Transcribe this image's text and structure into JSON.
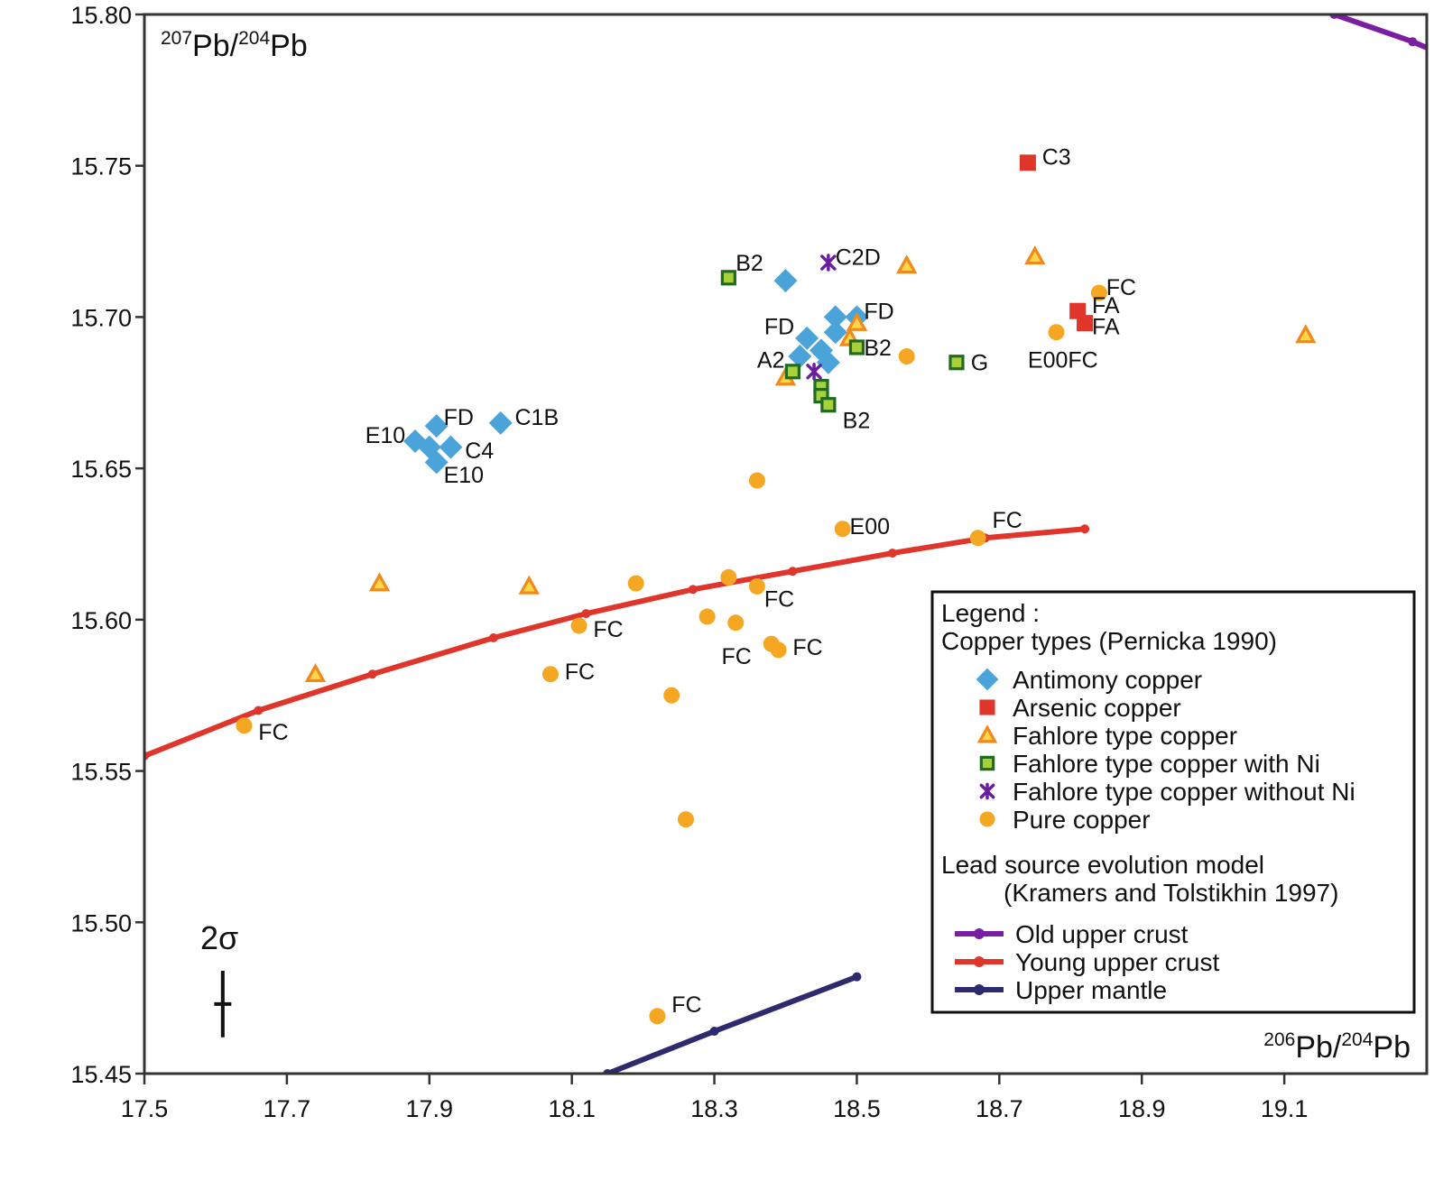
{
  "chart_data": {
    "type": "scatter",
    "x_label": "206Pb/204Pb",
    "x_label_parts": {
      "sup1": "206",
      "base1": "Pb/",
      "sup2": "204",
      "base2": "Pb"
    },
    "y_label": "207Pb/204Pb",
    "y_label_parts": {
      "sup1": "207",
      "base1": "Pb/",
      "sup2": "204",
      "base2": "Pb"
    },
    "xlim": [
      17.5,
      19.3
    ],
    "ylim": [
      15.45,
      15.8
    ],
    "x_ticks": [
      "17.5",
      "17.7",
      "17.9",
      "18.1",
      "18.3",
      "18.5",
      "18.7",
      "18.9",
      "19.1"
    ],
    "y_ticks": [
      "15.80",
      "15.75",
      "15.70",
      "15.65",
      "15.60",
      "15.55",
      "15.50",
      "15.45"
    ],
    "error_bar": {
      "label": "2σ",
      "x": 17.61,
      "y_center": 15.473,
      "y_half": 0.011,
      "x_half": 0.012
    },
    "series": [
      {
        "name": "Antimony copper",
        "marker": "diamond",
        "color": "#4aa3d9",
        "points": [
          [
            17.91,
            15.664
          ],
          [
            17.88,
            15.659
          ],
          [
            17.9,
            15.657
          ],
          [
            17.93,
            15.657
          ],
          [
            17.91,
            15.652
          ],
          [
            18.0,
            15.665
          ],
          [
            18.4,
            15.712
          ],
          [
            18.47,
            15.7
          ],
          [
            18.5,
            15.7
          ],
          [
            18.47,
            15.695
          ],
          [
            18.43,
            15.693
          ],
          [
            18.45,
            15.689
          ],
          [
            18.42,
            15.687
          ],
          [
            18.46,
            15.685
          ]
        ]
      },
      {
        "name": "Arsenic copper",
        "marker": "square",
        "color": "#e0352b",
        "points": [
          [
            18.74,
            15.751
          ],
          [
            18.81,
            15.702
          ],
          [
            18.82,
            15.698
          ]
        ]
      },
      {
        "name": "Fahlore type copper",
        "marker": "triangle",
        "color": "#f08a1c",
        "points": [
          [
            18.57,
            15.717
          ],
          [
            18.75,
            15.72
          ],
          [
            19.13,
            15.694
          ],
          [
            18.5,
            15.698
          ],
          [
            18.49,
            15.693
          ],
          [
            18.4,
            15.68
          ],
          [
            17.83,
            15.612
          ],
          [
            18.04,
            15.611
          ],
          [
            17.74,
            15.582
          ]
        ]
      },
      {
        "name": "Fahlore type copper with Ni",
        "marker": "square-outline",
        "color": "#a9cf3b",
        "points": [
          [
            18.32,
            15.713
          ],
          [
            18.5,
            15.69
          ],
          [
            18.64,
            15.685
          ],
          [
            18.41,
            15.682
          ],
          [
            18.45,
            15.677
          ],
          [
            18.45,
            15.674
          ],
          [
            18.46,
            15.671
          ]
        ]
      },
      {
        "name": "Fahlore type copper without Ni",
        "marker": "cross",
        "color": "#6a1e9e",
        "points": [
          [
            18.46,
            15.718
          ],
          [
            18.44,
            15.682
          ]
        ]
      },
      {
        "name": "Pure copper",
        "marker": "circle",
        "color": "#f5a623",
        "points": [
          [
            18.84,
            15.708
          ],
          [
            18.78,
            15.695
          ],
          [
            18.57,
            15.687
          ],
          [
            18.36,
            15.646
          ],
          [
            18.48,
            15.63
          ],
          [
            18.67,
            15.627
          ],
          [
            18.19,
            15.612
          ],
          [
            18.32,
            15.614
          ],
          [
            18.36,
            15.611
          ],
          [
            18.11,
            15.598
          ],
          [
            18.29,
            15.601
          ],
          [
            18.33,
            15.599
          ],
          [
            18.38,
            15.592
          ],
          [
            18.39,
            15.59
          ],
          [
            18.07,
            15.582
          ],
          [
            18.24,
            15.575
          ],
          [
            17.64,
            15.565
          ],
          [
            18.26,
            15.534
          ],
          [
            18.22,
            15.469
          ]
        ]
      }
    ],
    "model_curves": [
      {
        "name": "Old upper crust",
        "color": "#7b1fa2",
        "points": [
          [
            19.17,
            15.8
          ],
          [
            19.28,
            15.791
          ],
          [
            19.31,
            15.788
          ]
        ]
      },
      {
        "name": "Young upper crust",
        "color": "#e0352b",
        "points": [
          [
            17.5,
            15.555
          ],
          [
            17.66,
            15.57
          ],
          [
            17.82,
            15.582
          ],
          [
            17.99,
            15.594
          ],
          [
            18.12,
            15.602
          ],
          [
            18.27,
            15.61
          ],
          [
            18.41,
            15.616
          ],
          [
            18.55,
            15.622
          ],
          [
            18.68,
            15.627
          ],
          [
            18.82,
            15.63
          ]
        ]
      },
      {
        "name": "Upper mantle",
        "color": "#2e2a6e",
        "points": [
          [
            18.15,
            15.45
          ],
          [
            18.3,
            15.464
          ],
          [
            18.5,
            15.482
          ]
        ]
      }
    ],
    "annotations": [
      {
        "text": "C3",
        "x": 18.76,
        "y": 15.753
      },
      {
        "text": "B2",
        "x": 18.33,
        "y": 15.718
      },
      {
        "text": "C2D",
        "x": 18.47,
        "y": 15.72
      },
      {
        "text": "FC",
        "x": 18.85,
        "y": 15.71
      },
      {
        "text": "FD",
        "x": 18.51,
        "y": 15.702
      },
      {
        "text": "FA",
        "x": 18.83,
        "y": 15.704
      },
      {
        "text": "FA",
        "x": 18.83,
        "y": 15.697
      },
      {
        "text": "FD",
        "x": 18.37,
        "y": 15.697
      },
      {
        "text": "B2",
        "x": 18.51,
        "y": 15.69
      },
      {
        "text": "E00FC",
        "x": 18.74,
        "y": 15.686
      },
      {
        "text": "A2",
        "x": 18.36,
        "y": 15.686
      },
      {
        "text": "G",
        "x": 18.66,
        "y": 15.685
      },
      {
        "text": "B2",
        "x": 18.48,
        "y": 15.666
      },
      {
        "text": "FD",
        "x": 17.92,
        "y": 15.667
      },
      {
        "text": "C1B",
        "x": 18.02,
        "y": 15.667
      },
      {
        "text": "E10",
        "x": 17.81,
        "y": 15.661
      },
      {
        "text": "C4",
        "x": 17.95,
        "y": 15.656
      },
      {
        "text": "E10",
        "x": 17.92,
        "y": 15.648
      },
      {
        "text": "E00",
        "x": 18.49,
        "y": 15.631
      },
      {
        "text": "FC",
        "x": 18.69,
        "y": 15.633
      },
      {
        "text": "FC",
        "x": 18.37,
        "y": 15.607
      },
      {
        "text": "FC",
        "x": 18.13,
        "y": 15.597
      },
      {
        "text": "FC",
        "x": 18.41,
        "y": 15.591
      },
      {
        "text": "FC",
        "x": 18.31,
        "y": 15.588
      },
      {
        "text": "FC",
        "x": 18.09,
        "y": 15.583
      },
      {
        "text": "FC",
        "x": 17.66,
        "y": 15.563
      },
      {
        "text": "FC",
        "x": 18.24,
        "y": 15.473
      }
    ],
    "grid": false,
    "legend": {
      "placement": "lower-right",
      "title": "Legend :",
      "subtitle": "Copper types (Pernicka 1990)",
      "model_title": "Lead source evolution model",
      "model_ref": "(Kramers and Tolstikhin 1997)"
    }
  }
}
